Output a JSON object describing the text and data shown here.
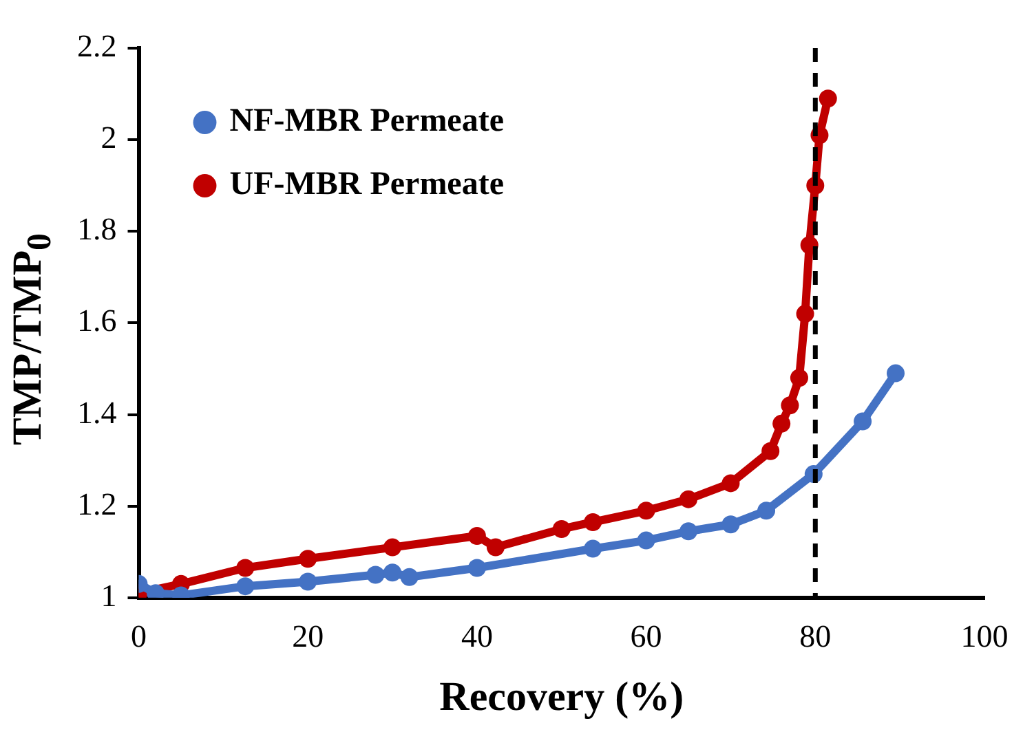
{
  "chart_data": {
    "type": "line",
    "xlabel": "Recovery (%)",
    "ylabel": "TMP/TMP$_{0}$",
    "xlim": [
      0,
      100
    ],
    "xticks": [
      0,
      20,
      40,
      60,
      80,
      100
    ],
    "ylim": [
      1,
      2.2
    ],
    "yticks": [
      1,
      1.2,
      1.4,
      1.6,
      1.8,
      2,
      2.2
    ],
    "grid": false,
    "legend": "top left",
    "marker": "circle",
    "line_style": "solid",
    "series": [
      {
        "name": "NF-MBR Permeate",
        "color": "#4472c4",
        "x": [
          0,
          2,
          5,
          12.6,
          20,
          28,
          30,
          32,
          40,
          53.7,
          60,
          65,
          70,
          74.2,
          79.8,
          85.6,
          89.5
        ],
        "values": [
          1.03,
          1.01,
          1.005,
          1.025,
          1.035,
          1.05,
          1.055,
          1.045,
          1.065,
          1.107,
          1.125,
          1.145,
          1.16,
          1.19,
          1.27,
          1.385,
          1.49
        ]
      },
      {
        "name": "UF-MBR Permeate",
        "color": "#c00000",
        "x": [
          0,
          5,
          12.6,
          20,
          30,
          40,
          42.2,
          50,
          53.7,
          60,
          65,
          70,
          74.7,
          76,
          77,
          78.1,
          78.8,
          79.3,
          80,
          80.5,
          81.5
        ],
        "values": [
          1.01,
          1.03,
          1.065,
          1.085,
          1.11,
          1.135,
          1.11,
          1.15,
          1.165,
          1.19,
          1.215,
          1.25,
          1.32,
          1.38,
          1.42,
          1.48,
          1.62,
          1.77,
          1.9,
          2.01,
          2.09
        ]
      }
    ],
    "ref_lines": [
      {
        "axis": "x",
        "value": 80,
        "color": "#000000",
        "line_style": "dashed"
      }
    ]
  }
}
